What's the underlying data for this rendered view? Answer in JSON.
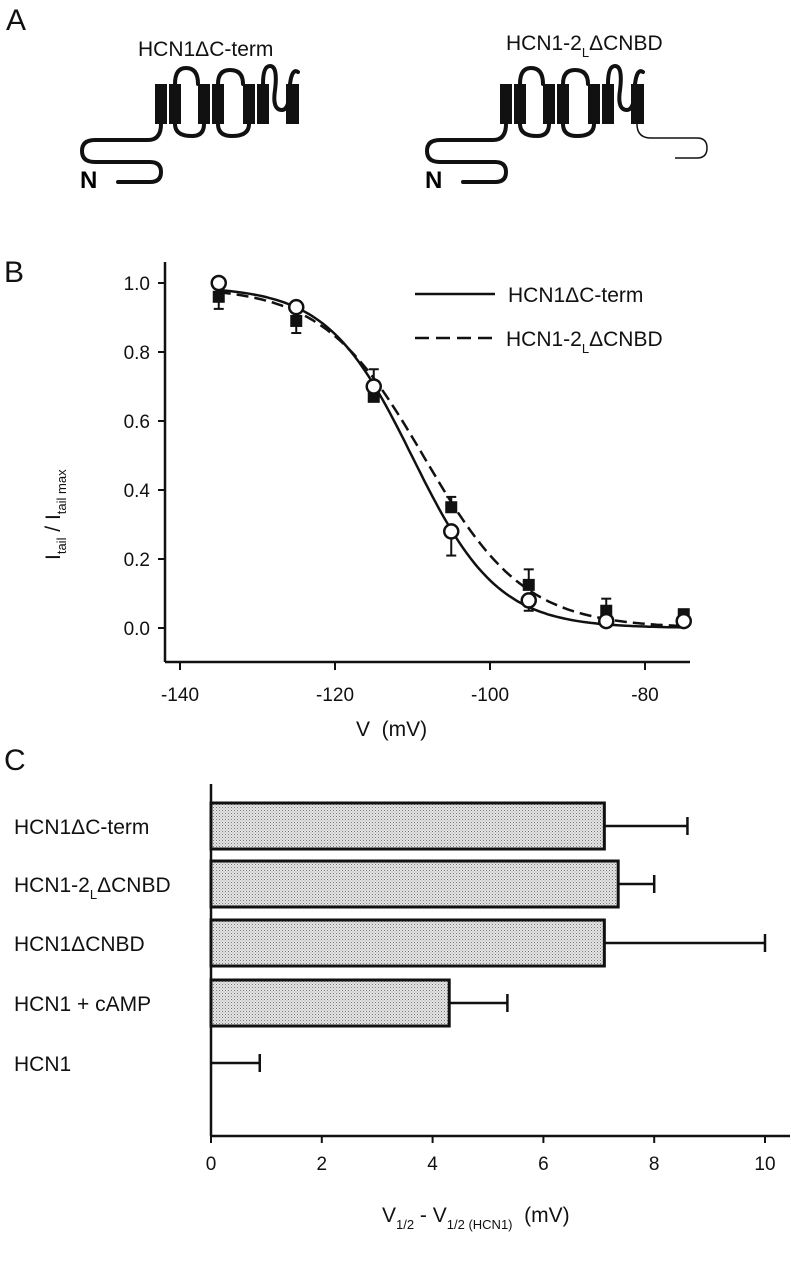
{
  "panels": {
    "a": "A",
    "b": "B",
    "c": "C"
  },
  "panel_a": {
    "constructs": [
      {
        "name": "HCN1ΔC-term",
        "parts": [
          "HCN1ΔC-term",
          "",
          ""
        ],
        "n_label": "N"
      },
      {
        "name": "HCN1-2LΔCNBD",
        "parts": [
          "HCN1-2",
          "L",
          "ΔCNBD"
        ],
        "n_label": "N"
      }
    ]
  },
  "chart_data": [
    {
      "type": "line",
      "title": "",
      "xlabel": "V  (mV)",
      "ylabel_parts": [
        "I",
        "tail",
        " / I",
        "tail max"
      ],
      "ylabel": "I_tail / I_tail max",
      "xlim": [
        -145,
        -70
      ],
      "ylim": [
        -0.08,
        1.08
      ],
      "xticks": [
        -140,
        -120,
        -100,
        -80
      ],
      "yticks": [
        "0.0",
        "0.2",
        "0.4",
        "0.6",
        "0.8",
        "1.0"
      ],
      "legend_position": "top-right",
      "series": [
        {
          "name": "HCN1ΔC-term",
          "legend_parts": [
            "HCN1ΔC-term",
            "",
            ""
          ],
          "line": "solid",
          "marker": "open-circle",
          "x": [
            -135,
            -125,
            -115,
            -105,
            -95,
            -85,
            -75
          ],
          "y": [
            1.0,
            0.93,
            0.7,
            0.28,
            0.08,
            0.02,
            0.02
          ],
          "err": [
            0.0,
            0.0,
            0.05,
            0.07,
            0.03,
            0.0,
            0.0
          ],
          "fit": {
            "v_half": -110,
            "slope": 5.5
          }
        },
        {
          "name": "HCN1-2LΔCNBD",
          "legend_parts": [
            "HCN1-2",
            "L",
            "ΔCNBD"
          ],
          "line": "dashed",
          "marker": "filled-square",
          "x": [
            -135,
            -125,
            -115,
            -105,
            -95,
            -85,
            -75
          ],
          "y": [
            0.96,
            0.89,
            0.67,
            0.35,
            0.125,
            0.05,
            0.04
          ],
          "err": [
            0.035,
            0.035,
            0.0,
            0.03,
            0.045,
            0.035,
            0.0
          ],
          "fit": {
            "v_half": -108.5,
            "slope": 6.5
          }
        }
      ]
    },
    {
      "type": "bar",
      "orientation": "horizontal",
      "categories": [
        "HCN1ΔC-term",
        "HCN1-2LΔCNBD",
        "HCN1ΔCNBD",
        "HCN1 + cAMP",
        "HCN1"
      ],
      "category_parts": [
        [
          "HCN1ΔC-term",
          "",
          ""
        ],
        [
          "HCN1-2",
          "L",
          "ΔCNBD"
        ],
        [
          "HCN1ΔCNBD",
          "",
          ""
        ],
        [
          "HCN1 + cAMP",
          "",
          ""
        ],
        [
          "HCN1",
          "",
          ""
        ]
      ],
      "values": [
        7.1,
        7.35,
        7.1,
        4.3,
        0.0
      ],
      "errors": [
        1.5,
        0.65,
        2.9,
        1.05,
        0.88
      ],
      "xlabel": "V1/2 - V1/2 (HCN1)  (mV)",
      "xlabel_parts": [
        "V",
        "1/2",
        " - V",
        "1/2 (HCN1)",
        "  (mV)"
      ],
      "xlim": [
        0,
        10.3
      ],
      "xticks": [
        "0",
        "2",
        "4",
        "6",
        "8",
        "10"
      ]
    }
  ],
  "colors": {
    "ink": "#111111",
    "bar_fill": "#c8c8c8"
  }
}
